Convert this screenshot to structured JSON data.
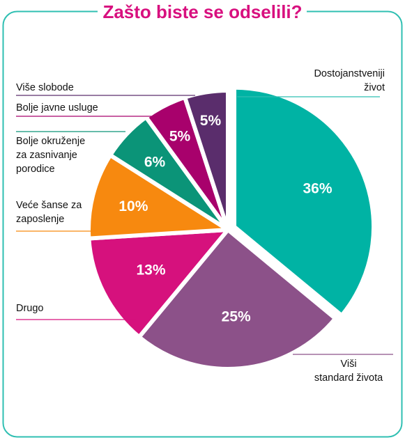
{
  "chart_data": {
    "type": "pie",
    "title": "Zašto biste se odselili?",
    "slices": [
      {
        "label": "Dostojanstveniji život",
        "value": 36,
        "display": "36%",
        "color": "#00b3a4"
      },
      {
        "label": "Viši standard života",
        "value": 25,
        "display": "25%",
        "color": "#8c5189"
      },
      {
        "label": "Drugo",
        "value": 13,
        "display": "13%",
        "color": "#d6117d"
      },
      {
        "label": "Veće šanse za zaposlenje",
        "value": 10,
        "display": "10%",
        "color": "#f7890f"
      },
      {
        "label": "Bolje okruženje za zasnivanje porodice",
        "value": 6,
        "display": "6%",
        "color": "#0b9478"
      },
      {
        "label": "Bolje javne usluge",
        "value": 5,
        "display": "5%",
        "color": "#a8016c"
      },
      {
        "label": "Više slobode",
        "value": 5,
        "display": "5%",
        "color": "#5a2d6c"
      }
    ]
  },
  "labels": {
    "dostojanstveniji": [
      "Dostojanstveniji",
      "život"
    ],
    "visi": [
      "Viši",
      "standard života"
    ],
    "drugo": [
      "Drugo"
    ],
    "vece": [
      "Veće šanse za",
      "zaposlenje"
    ],
    "bolje_okruzenje": [
      "Bolje okruženje",
      "za zasnivanje",
      "porodice"
    ],
    "bolje_javne": [
      "Bolje javne usluge"
    ],
    "vise_slobode": [
      "Više slobode"
    ]
  },
  "colors": {
    "frame": "#2fbfb2",
    "title": "#d8107f"
  }
}
